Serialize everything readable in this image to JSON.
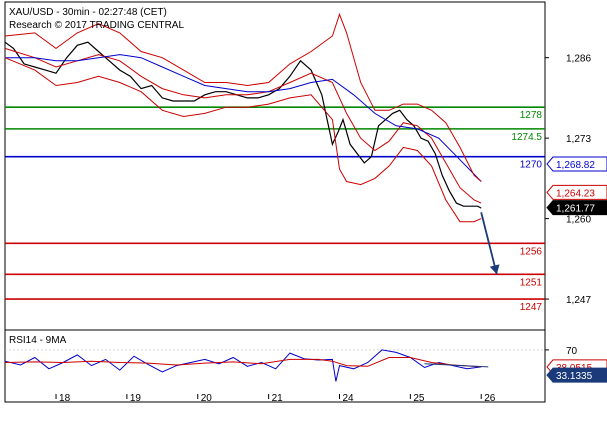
{
  "header": {
    "title": "XAU/USD - 30min - 02:27:48 (CET)",
    "copyright": "Research © 2017 TRADING CENTRAL"
  },
  "chart_data": [
    {
      "type": "line",
      "name": "price",
      "ylim": [
        1242,
        1295
      ],
      "ytick_labels": [
        "1,286",
        "1,273",
        "1,260",
        "1,247"
      ],
      "ytick_values": [
        1286,
        1273,
        1260,
        1247
      ],
      "xtick_labels": [
        "18",
        "19",
        "20",
        "21",
        "24",
        "25",
        "26"
      ],
      "xtick_values": [
        0,
        1,
        2,
        3,
        4,
        5,
        6
      ],
      "xlim": [
        -0.72,
        6.9
      ],
      "series": [
        {
          "id": "price",
          "color": "#000000",
          "x": [
            -0.72,
            -0.6,
            -0.45,
            -0.3,
            -0.15,
            0,
            0.15,
            0.3,
            0.45,
            0.6,
            0.75,
            0.9,
            1.05,
            1.2,
            1.35,
            1.5,
            1.65,
            1.8,
            1.95,
            2.1,
            2.25,
            2.4,
            2.55,
            2.7,
            2.85,
            3,
            3.15,
            3.3,
            3.45,
            3.6,
            3.75,
            3.9,
            3.98,
            4.05,
            4.15,
            4.25,
            4.35,
            4.45,
            4.55,
            4.65,
            4.75,
            4.85,
            4.95,
            5.05,
            5.15,
            5.25,
            5.35,
            5.45,
            5.55,
            5.65,
            5.75,
            5.85,
            5.95,
            6.0
          ],
          "y": [
            1288.5,
            1287.5,
            1285,
            1284.5,
            1284,
            1283.5,
            1286,
            1288,
            1288.5,
            1287,
            1285.5,
            1284,
            1283,
            1281,
            1281.5,
            1279.5,
            1279,
            1279,
            1279,
            1280,
            1280.5,
            1280.5,
            1280,
            1279.5,
            1279.5,
            1280,
            1281,
            1283,
            1285.5,
            1284,
            1280,
            1272,
            1274,
            1276,
            1272,
            1270.5,
            1269,
            1270,
            1275,
            1276,
            1277,
            1277.5,
            1276,
            1275,
            1273,
            1272.5,
            1270.5,
            1267,
            1264.5,
            1262.5,
            1262,
            1262,
            1262,
            1261.7
          ]
        },
        {
          "id": "ma-fast",
          "color": "#cc0000",
          "x": [
            -0.72,
            -0.3,
            0,
            0.3,
            0.6,
            0.9,
            1.2,
            1.5,
            1.8,
            2.1,
            2.4,
            2.7,
            3,
            3.3,
            3.6,
            3.9,
            4.1,
            4.3,
            4.5,
            4.7,
            4.9,
            5.1,
            5.3,
            5.5,
            5.7,
            5.9,
            6.0
          ],
          "y": [
            1287.5,
            1286,
            1284.5,
            1285.5,
            1286.5,
            1285.5,
            1283,
            1281,
            1280,
            1279.5,
            1280,
            1280,
            1280.5,
            1282,
            1283.5,
            1282,
            1277,
            1273,
            1271,
            1272.5,
            1275.5,
            1275,
            1273,
            1269,
            1265,
            1263,
            1262.5
          ]
        },
        {
          "id": "ma-slow",
          "color": "#0000cc",
          "x": [
            -0.72,
            -0.3,
            0,
            0.3,
            0.6,
            0.9,
            1.2,
            1.5,
            1.8,
            2.1,
            2.4,
            2.7,
            3,
            3.3,
            3.6,
            3.9,
            4.2,
            4.5,
            4.8,
            5.1,
            5.4,
            5.7,
            6.0
          ],
          "y": [
            1286,
            1286,
            1285.5,
            1285.5,
            1286,
            1286.5,
            1286,
            1284.5,
            1283,
            1281.5,
            1281,
            1280.5,
            1280.5,
            1281,
            1282,
            1282.5,
            1280,
            1277,
            1275,
            1274.5,
            1273,
            1269.5,
            1266
          ]
        },
        {
          "id": "bollinger-upper",
          "color": "#cc0000",
          "x": [
            -0.72,
            -0.3,
            0,
            0.3,
            0.6,
            0.9,
            1.2,
            1.5,
            1.8,
            2.1,
            2.4,
            2.7,
            3,
            3.3,
            3.6,
            3.9,
            4.0,
            4.1,
            4.3,
            4.5,
            4.7,
            4.9,
            5.1,
            5.3,
            5.5,
            5.7,
            5.9,
            6.0
          ],
          "y": [
            1289.5,
            1290,
            1287.5,
            1290,
            1291.5,
            1290,
            1287,
            1286,
            1284,
            1282,
            1282,
            1281.5,
            1282,
            1285,
            1287,
            1289.5,
            1293,
            1290,
            1282,
            1277.5,
            1277.5,
            1278.5,
            1278.5,
            1277.5,
            1275.5,
            1271.5,
            1267,
            1266
          ]
        },
        {
          "id": "bollinger-lower",
          "color": "#cc0000",
          "x": [
            -0.72,
            -0.3,
            0,
            0.3,
            0.6,
            0.9,
            1.2,
            1.5,
            1.8,
            2.1,
            2.4,
            2.7,
            3,
            3.3,
            3.6,
            3.9,
            4.0,
            4.1,
            4.3,
            4.5,
            4.7,
            4.9,
            5.1,
            5.3,
            5.5,
            5.7,
            5.9,
            6.0
          ],
          "y": [
            1286,
            1284,
            1281.5,
            1282,
            1283,
            1282,
            1280.5,
            1277.5,
            1276.5,
            1277,
            1278,
            1278,
            1278.5,
            1279.5,
            1280,
            1276,
            1268,
            1266,
            1265.5,
            1266.5,
            1268.5,
            1271.5,
            1271,
            1268.5,
            1263,
            1259.5,
            1259.5,
            1260
          ]
        },
        {
          "id": "forecast",
          "color": "#1a3a7a",
          "x": [
            6.0,
            6.22
          ],
          "y": [
            1261,
            1251
          ]
        }
      ],
      "levels": [
        {
          "label": "1278",
          "value": 1278,
          "color": "#008800"
        },
        {
          "label": "1274.5",
          "value": 1274.5,
          "color": "#008800"
        },
        {
          "label": "1270",
          "value": 1270,
          "color": "#0000cc"
        },
        {
          "label": "1256",
          "value": 1256,
          "color": "#cc0000"
        },
        {
          "label": "1251",
          "value": 1251,
          "color": "#cc0000"
        },
        {
          "label": "1247",
          "value": 1247,
          "color": "#cc0000"
        }
      ],
      "price_tags": [
        {
          "label": "1,268.82",
          "value": 1268.82,
          "bg": "#ffffff",
          "fg": "#0000cc"
        },
        {
          "label": "1,264.23",
          "value": 1264.23,
          "bg": "#ffffff",
          "fg": "#cc0000"
        },
        {
          "label": "1,261.77",
          "value": 1261.77,
          "bg": "#000000",
          "fg": "#ffffff"
        }
      ]
    },
    {
      "type": "line",
      "name": "rsi",
      "title": "RSI14 - 9MA",
      "ylim": [
        0,
        100
      ],
      "ytick_labels": [
        "70"
      ],
      "ytick_values": [
        70
      ],
      "series": [
        {
          "id": "rsi",
          "color": "#0000cc",
          "x": [
            -0.72,
            -0.5,
            -0.3,
            -0.1,
            0.1,
            0.3,
            0.5,
            0.7,
            0.9,
            1.1,
            1.3,
            1.5,
            1.7,
            1.9,
            2.1,
            2.3,
            2.5,
            2.7,
            2.9,
            3.1,
            3.3,
            3.5,
            3.7,
            3.9,
            3.95,
            4.0,
            4.2,
            4.4,
            4.6,
            4.8,
            5.0,
            5.2,
            5.4,
            5.6,
            5.8,
            6.0
          ],
          "y": [
            52,
            46,
            58,
            40,
            50,
            62,
            45,
            55,
            38,
            60,
            47,
            35,
            45,
            50,
            55,
            48,
            58,
            44,
            50,
            40,
            65,
            56,
            54,
            55,
            20,
            45,
            40,
            50,
            70,
            66,
            58,
            42,
            50,
            45,
            40,
            43
          ]
        },
        {
          "id": "rsi-ma",
          "color": "#cc0000",
          "x": [
            -0.72,
            -0.3,
            0.1,
            0.5,
            0.9,
            1.3,
            1.7,
            2.1,
            2.5,
            2.9,
            3.3,
            3.7,
            3.9,
            4.1,
            4.4,
            4.7,
            5.0,
            5.3,
            5.6,
            6.0
          ],
          "y": [
            50,
            51,
            50,
            52,
            50,
            49,
            46,
            49,
            51,
            48,
            55,
            55,
            52,
            45,
            44,
            58,
            58,
            50,
            46,
            43
          ]
        },
        {
          "id": "rsi-trend",
          "color": "#1a3a7a",
          "x": [
            5.2,
            6.1
          ],
          "y": [
            48,
            43
          ]
        }
      ],
      "price_tags": [
        {
          "label": "38.0515",
          "value": 43,
          "bg": "#ffffff",
          "fg": "#cc0000"
        },
        {
          "label": "33.1335",
          "value": 30,
          "bg": "#1a3a7a",
          "fg": "#ffffff"
        }
      ]
    }
  ]
}
